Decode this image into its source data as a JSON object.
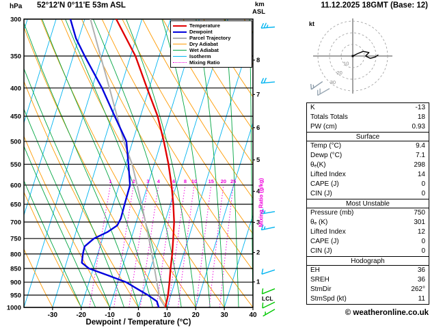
{
  "header": {
    "pressure_unit": "hPa",
    "station": "52°12'N 0°11'E 53m ASL",
    "datetime": "11.12.2025 18GMT (Base: 12)",
    "km_label": "km",
    "asl_label": "ASL"
  },
  "legend": [
    {
      "label": "Temperature",
      "color": "#e10000",
      "thick": true,
      "dotted": false
    },
    {
      "label": "Dewpoint",
      "color": "#0000dd",
      "thick": true,
      "dotted": false
    },
    {
      "label": "Parcel Trajectory",
      "color": "#b0b0b0",
      "thick": true,
      "dotted": false
    },
    {
      "label": "Dry Adiabat",
      "color": "#ff9a00",
      "thick": false,
      "dotted": false
    },
    {
      "label": "Wet Adiabat",
      "color": "#00a541",
      "thick": false,
      "dotted": false
    },
    {
      "label": "Isotherm",
      "color": "#00b4f0",
      "thick": false,
      "dotted": false
    },
    {
      "label": "Mixing Ratio",
      "color": "#f000dc",
      "thick": false,
      "dotted": true
    }
  ],
  "axes": {
    "pressure_levels": [
      300,
      350,
      400,
      450,
      500,
      550,
      600,
      650,
      700,
      750,
      800,
      850,
      900,
      950,
      1000
    ],
    "temp_ticks": [
      -30,
      -20,
      -10,
      0,
      10,
      20,
      30,
      40
    ],
    "km_ticks": [
      {
        "km": 8,
        "pressure": 356
      },
      {
        "km": 7,
        "pressure": 411
      },
      {
        "km": 6,
        "pressure": 472
      },
      {
        "km": 5,
        "pressure": 540
      },
      {
        "km": 4,
        "pressure": 616
      },
      {
        "km": 3,
        "pressure": 701
      },
      {
        "km": 2,
        "pressure": 795
      },
      {
        "km": 1,
        "pressure": 899
      }
    ],
    "xlabel": "Dewpoint / Temperature (°C)",
    "mixing_label": "Mixing Ratio (g/kg)",
    "lcl": "LCL"
  },
  "chart_data": {
    "type": "line",
    "subtype": "skew-t-log-p sounding",
    "pressure_range": [
      300,
      1000
    ],
    "temp_range": [
      -40,
      40
    ],
    "skew": 0.31,
    "series": [
      {
        "id": "parcel-trajectory",
        "name": "Parcel Trajectory",
        "color": "#b0b0b0",
        "width": 2,
        "points": [
          [
            1000,
            9.4
          ],
          [
            965,
            6.6
          ],
          [
            900,
            3.7
          ],
          [
            850,
            1.4
          ],
          [
            800,
            -1.1
          ],
          [
            750,
            -3.8
          ],
          [
            700,
            -6.8
          ],
          [
            650,
            -10.1
          ],
          [
            600,
            -13.7
          ],
          [
            550,
            -17.7
          ],
          [
            500,
            -23.1
          ],
          [
            450,
            -28.2
          ],
          [
            400,
            -33.9
          ],
          [
            350,
            -40.5
          ],
          [
            300,
            -48.0
          ]
        ]
      },
      {
        "id": "dewpoint",
        "name": "Dewpoint",
        "color": "#0000dd",
        "width": 2.4,
        "points": [
          [
            1000,
            7.1
          ],
          [
            975,
            5.8
          ],
          [
            950,
            2.0
          ],
          [
            925,
            -2.5
          ],
          [
            900,
            -7.0
          ],
          [
            875,
            -14.0
          ],
          [
            850,
            -21.5
          ],
          [
            830,
            -24.6
          ],
          [
            800,
            -25.2
          ],
          [
            775,
            -25.4
          ],
          [
            750,
            -23.0
          ],
          [
            730,
            -19.0
          ],
          [
            710,
            -16.3
          ],
          [
            690,
            -15.8
          ],
          [
            650,
            -16.0
          ],
          [
            600,
            -16.2
          ],
          [
            550,
            -19.0
          ],
          [
            500,
            -22.2
          ],
          [
            450,
            -29.0
          ],
          [
            400,
            -36.5
          ],
          [
            350,
            -46.0
          ],
          [
            325,
            -51.0
          ],
          [
            300,
            -55.0
          ]
        ]
      },
      {
        "id": "temperature",
        "name": "Temperature",
        "color": "#e10000",
        "width": 2.4,
        "points": [
          [
            1000,
            9.4
          ],
          [
            950,
            9.0
          ],
          [
            900,
            8.1
          ],
          [
            850,
            7.0
          ],
          [
            800,
            6.0
          ],
          [
            750,
            4.7
          ],
          [
            700,
            3.2
          ],
          [
            650,
            1.0
          ],
          [
            600,
            -1.7
          ],
          [
            550,
            -5.0
          ],
          [
            500,
            -9.1
          ],
          [
            450,
            -14.0
          ],
          [
            400,
            -20.8
          ],
          [
            350,
            -28.3
          ],
          [
            300,
            -39.0
          ]
        ]
      }
    ],
    "background": {
      "isotherms": {
        "start": -70,
        "end": 40,
        "step": 10,
        "color": "#00b4f0"
      },
      "dry_adiabats": {
        "start": -30,
        "end": 130,
        "step": 10,
        "color": "#ff9a00"
      },
      "wet_adiabats": {
        "start": -20,
        "end": 40,
        "step": 5,
        "color": "#00a541"
      },
      "mixing_ratio": {
        "values": [
          1,
          2,
          3,
          4,
          6,
          8,
          10,
          15,
          20,
          25
        ],
        "top_pressure": 600,
        "color": "#f000dc"
      }
    },
    "wind_barbs": [
      {
        "pressure": 310,
        "speed": 25,
        "direction": 265,
        "color": "#00b4f0"
      },
      {
        "pressure": 390,
        "speed": 20,
        "direction": 265,
        "color": "#00b4f0"
      },
      {
        "pressure": 670,
        "speed": 15,
        "direction": 260,
        "color": "#00b4f0"
      },
      {
        "pressure": 715,
        "speed": 15,
        "direction": 258,
        "color": "#00b4f0"
      },
      {
        "pressure": 855,
        "speed": 10,
        "direction": 252,
        "color": "#00b4f0"
      },
      {
        "pressure": 925,
        "speed": 10,
        "direction": 248,
        "color": "#00c800"
      },
      {
        "pressure": 978,
        "speed": 10,
        "direction": 244,
        "color": "#00c800"
      },
      {
        "pressure": 1008,
        "speed": 5,
        "direction": 240,
        "color": "#00c800"
      }
    ]
  },
  "hodograph": {
    "unit": "kt",
    "rings_kt": [
      10,
      20,
      30
    ],
    "trace_kt": [
      [
        0,
        0
      ],
      [
        4,
        2
      ],
      [
        9,
        4
      ],
      [
        14,
        3
      ],
      [
        11,
        0
      ],
      [
        15,
        -2
      ],
      [
        19,
        -1
      ],
      [
        22,
        1
      ]
    ],
    "storm_dir_deg": 262,
    "storm_speed_kt": 11,
    "marker_barbs": [
      {
        "dx_kt": -26,
        "dy_kt": -22,
        "speed": 15,
        "dir": 235,
        "color": "#8a9aa8"
      },
      {
        "dx_kt": -20,
        "dy_kt": -28,
        "speed": 20,
        "dir": 240,
        "color": "#9aa8b4"
      }
    ]
  },
  "table": {
    "top_rows": [
      {
        "label": "K",
        "value": "-13"
      },
      {
        "label": "Totals Totals",
        "value": "18"
      },
      {
        "label": "PW (cm)",
        "value": "0.93"
      }
    ],
    "sections": [
      {
        "title": "Surface",
        "rows": [
          {
            "label": "Temp (°C)",
            "value": "9.4"
          },
          {
            "label": "Dewp (°C)",
            "value": "7.1"
          },
          {
            "label": "θₑ(K)",
            "value": "298"
          },
          {
            "label": "Lifted Index",
            "value": "14"
          },
          {
            "label": "CAPE (J)",
            "value": "0"
          },
          {
            "label": "CIN (J)",
            "value": "0"
          }
        ]
      },
      {
        "title": "Most Unstable",
        "rows": [
          {
            "label": "Pressure (mb)",
            "value": "750"
          },
          {
            "label": "θₑ (K)",
            "value": "301"
          },
          {
            "label": "Lifted Index",
            "value": "12"
          },
          {
            "label": "CAPE (J)",
            "value": "0"
          },
          {
            "label": "CIN (J)",
            "value": "0"
          }
        ]
      },
      {
        "title": "Hodograph",
        "rows": [
          {
            "label": "EH",
            "value": "36"
          },
          {
            "label": "SREH",
            "value": "36"
          },
          {
            "label": "StmDir",
            "value": "262°"
          },
          {
            "label": "StmSpd (kt)",
            "value": "11"
          }
        ]
      }
    ]
  },
  "footer": {
    "copyright": "© weatheronline.co.uk"
  }
}
